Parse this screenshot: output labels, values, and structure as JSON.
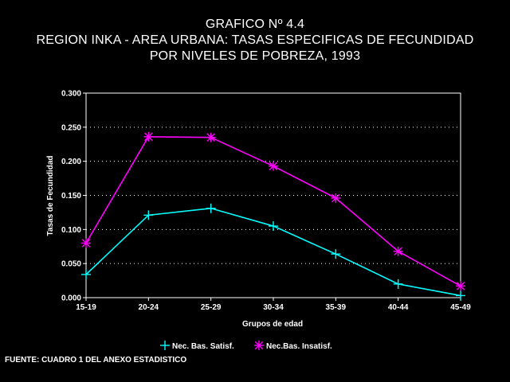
{
  "chart_data": {
    "type": "line",
    "title": [
      "GRAFICO Nº 4.4",
      "REGION INKA - AREA URBANA: TASAS ESPECIFICAS DE FECUNDIDAD",
      "POR NIVELES DE POBREZA, 1993"
    ],
    "xlabel": "Grupos de edad",
    "ylabel": "Tasas de Fecundidad",
    "categories": [
      "15-19",
      "20-24",
      "25-29",
      "30-34",
      "35-39",
      "40-44",
      "45-49"
    ],
    "y_ticks": [
      "0.000",
      "0.050",
      "0.100",
      "0.150",
      "0.200",
      "0.250",
      "0.300"
    ],
    "ylim": [
      0,
      0.3
    ],
    "grid": "horizontal dotted",
    "legend_position": "bottom",
    "series": [
      {
        "name": "Nec. Bas. Satisf.",
        "marker": "plus",
        "color": "#00ffff",
        "values": [
          0.034,
          0.121,
          0.131,
          0.105,
          0.064,
          0.02,
          0.003
        ]
      },
      {
        "name": "Nec.Bas. Insatisf.",
        "marker": "asterisk",
        "color": "#ff00ff",
        "values": [
          0.08,
          0.236,
          0.235,
          0.193,
          0.146,
          0.068,
          0.017
        ]
      }
    ]
  },
  "source": "FUENTE: CUADRO 1 DEL ANEXO ESTADISTICO"
}
